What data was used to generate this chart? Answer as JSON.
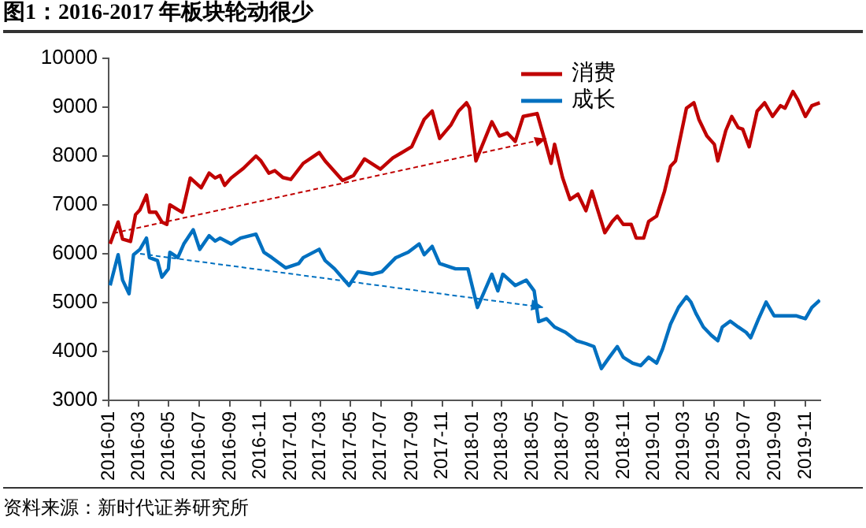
{
  "chart_data": {
    "type": "line",
    "title": "图1：2016-2017 年板块轮动很少",
    "annotations": [
      "资料来源：新时代证券研究所"
    ],
    "legend": "top right",
    "xlim": [
      "2016-01-01",
      "2019-12-01"
    ],
    "xticks": [
      "2016-01",
      "2016-03",
      "2016-05",
      "2016-07",
      "2016-09",
      "2016-11",
      "2017-01",
      "2017-03",
      "2017-05",
      "2017-07",
      "2017-09",
      "2017-11",
      "2018-01",
      "2018-03",
      "2018-05",
      "2018-07",
      "2018-09",
      "2018-11",
      "2019-01",
      "2019-03",
      "2019-05",
      "2019-07",
      "2019-09",
      "2019-11"
    ],
    "ylim": [
      3000,
      10000
    ],
    "yticks": [
      3000,
      4000,
      5000,
      6000,
      7000,
      8000,
      9000,
      10000
    ],
    "series": [
      {
        "name": "消费",
        "color": "#c00000",
        "x": [
          "2016-01-04",
          "2016-01-20",
          "2016-01-29",
          "2016-02-14",
          "2016-02-24",
          "2016-03-04",
          "2016-03-17",
          "2016-03-23",
          "2016-04-05",
          "2016-04-17",
          "2016-04-27",
          "2016-05-03",
          "2016-05-19",
          "2016-05-28",
          "2016-06-13",
          "2016-07-05",
          "2016-07-21",
          "2016-08-02",
          "2016-08-12",
          "2016-08-21",
          "2016-09-03",
          "2016-09-28",
          "2016-10-23",
          "2016-11-02",
          "2016-11-18",
          "2016-11-30",
          "2016-12-16",
          "2017-01-01",
          "2017-01-26",
          "2017-02-27",
          "2017-03-11",
          "2017-04-15",
          "2017-05-07",
          "2017-05-29",
          "2017-06-30",
          "2017-07-25",
          "2017-09-01",
          "2017-09-26",
          "2017-10-12",
          "2017-10-27",
          "2017-11-19",
          "2017-12-04",
          "2017-12-20",
          "2017-12-26",
          "2018-01-08",
          "2018-01-24",
          "2018-02-09",
          "2018-02-24",
          "2018-03-12",
          "2018-03-28",
          "2018-04-13",
          "2018-05-11",
          "2018-05-27",
          "2018-06-08",
          "2018-06-15",
          "2018-07-01",
          "2018-07-16",
          "2018-08-01",
          "2018-08-17",
          "2018-08-29",
          "2018-09-24",
          "2018-10-09",
          "2018-10-19",
          "2018-10-31",
          "2018-11-16",
          "2018-11-26",
          "2018-12-11",
          "2018-12-21",
          "2019-01-06",
          "2019-01-22",
          "2019-02-03",
          "2019-02-13",
          "2019-03-07",
          "2019-03-22",
          "2019-04-01",
          "2019-04-17",
          "2019-05-02",
          "2019-05-09",
          "2019-05-25",
          "2019-06-06",
          "2019-06-19",
          "2019-06-28",
          "2019-07-11",
          "2019-07-27",
          "2019-08-11",
          "2019-08-27",
          "2019-09-12",
          "2019-09-21",
          "2019-10-07",
          "2019-10-17",
          "2019-11-01",
          "2019-11-14",
          "2019-11-30"
        ],
        "values": [
          6200,
          6650,
          6300,
          6250,
          6800,
          6900,
          7200,
          6850,
          6850,
          6650,
          6600,
          7000,
          6900,
          6850,
          7550,
          7350,
          7650,
          7550,
          7600,
          7400,
          7550,
          7750,
          8000,
          7900,
          7650,
          7700,
          7560,
          7520,
          7850,
          8070,
          7900,
          7500,
          7600,
          7940,
          7730,
          7960,
          8190,
          8750,
          8920,
          8360,
          8640,
          8920,
          9090,
          8980,
          7900,
          8300,
          8700,
          8410,
          8470,
          8300,
          8810,
          8870,
          8300,
          7850,
          8240,
          7560,
          7110,
          7220,
          6880,
          7280,
          6430,
          6660,
          6770,
          6600,
          6600,
          6320,
          6320,
          6660,
          6770,
          7280,
          7790,
          7900,
          8980,
          9090,
          8750,
          8410,
          8240,
          7900,
          8520,
          8810,
          8580,
          8550,
          8190,
          8920,
          9090,
          8810,
          9030,
          8980,
          9320,
          9150,
          8810,
          9030,
          9090
        ]
      },
      {
        "name": "成长",
        "color": "#0070c0",
        "x": [
          "2016-01-04",
          "2016-01-20",
          "2016-01-29",
          "2016-02-11",
          "2016-02-20",
          "2016-03-04",
          "2016-03-17",
          "2016-03-23",
          "2016-04-08",
          "2016-04-17",
          "2016-04-30",
          "2016-05-03",
          "2016-05-19",
          "2016-05-31",
          "2016-06-19",
          "2016-07-02",
          "2016-07-21",
          "2016-08-02",
          "2016-08-12",
          "2016-09-03",
          "2016-09-22",
          "2016-10-23",
          "2016-11-08",
          "2016-11-24",
          "2016-12-22",
          "2017-01-17",
          "2017-01-26",
          "2017-02-27",
          "2017-03-11",
          "2017-03-30",
          "2017-04-28",
          "2017-05-16",
          "2017-06-14",
          "2017-07-03",
          "2017-07-31",
          "2017-08-25",
          "2017-09-16",
          "2017-09-26",
          "2017-10-12",
          "2017-10-27",
          "2017-11-28",
          "2017-12-23",
          "2018-01-11",
          "2018-02-09",
          "2018-02-21",
          "2018-03-03",
          "2018-03-28",
          "2018-04-19",
          "2018-05-05",
          "2018-05-14",
          "2018-05-30",
          "2018-06-15",
          "2018-07-07",
          "2018-07-29",
          "2018-08-17",
          "2018-09-02",
          "2018-09-17",
          "2018-10-03",
          "2018-10-19",
          "2018-10-31",
          "2018-11-19",
          "2018-12-05",
          "2018-12-21",
          "2019-01-06",
          "2019-01-18",
          "2019-02-03",
          "2019-02-19",
          "2019-03-07",
          "2019-03-16",
          "2019-03-26",
          "2019-04-10",
          "2019-04-26",
          "2019-05-09",
          "2019-05-18",
          "2019-06-03",
          "2019-06-19",
          "2019-07-05",
          "2019-07-14",
          "2019-07-30",
          "2019-08-14",
          "2019-08-30",
          "2019-09-21",
          "2019-10-13",
          "2019-11-01",
          "2019-11-14",
          "2019-11-30"
        ],
        "values": [
          5350,
          5980,
          5460,
          5180,
          5980,
          6090,
          6320,
          5920,
          5860,
          5520,
          5690,
          6030,
          5920,
          6200,
          6490,
          6090,
          6370,
          6260,
          6320,
          6200,
          6320,
          6400,
          6030,
          5920,
          5710,
          5800,
          5920,
          6090,
          5860,
          5690,
          5350,
          5630,
          5580,
          5630,
          5920,
          6030,
          6200,
          5980,
          6150,
          5800,
          5690,
          5690,
          4900,
          5580,
          5240,
          5580,
          5350,
          5460,
          5240,
          4610,
          4670,
          4500,
          4390,
          4220,
          4160,
          4100,
          3650,
          3880,
          4100,
          3880,
          3760,
          3710,
          3880,
          3760,
          4050,
          4560,
          4900,
          5120,
          5010,
          4780,
          4500,
          4330,
          4220,
          4500,
          4620,
          4500,
          4390,
          4280,
          4670,
          5010,
          4730,
          4730,
          4730,
          4670,
          4900,
          5050
        ]
      }
    ]
  }
}
